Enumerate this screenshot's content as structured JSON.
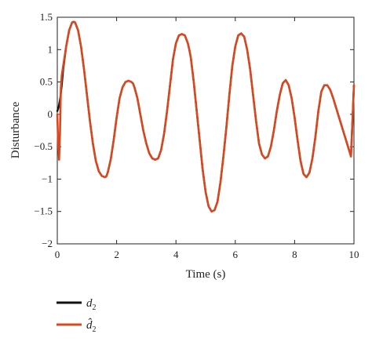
{
  "chart_data": {
    "type": "line",
    "xlabel": "Time (s)",
    "ylabel": "Disturbance",
    "xlim": [
      0,
      10
    ],
    "ylim": [
      -2,
      1.5
    ],
    "xticks": [
      0,
      2,
      4,
      6,
      8,
      10
    ],
    "yticks": [
      -2,
      -1.5,
      -1,
      -0.5,
      0,
      0.5,
      1,
      1.5
    ],
    "xtick_labels": [
      "0",
      "2",
      "4",
      "6",
      "8",
      "10"
    ],
    "ytick_labels": [
      "−2",
      "−1.5",
      "−1",
      "−0.5",
      "0",
      "0.5",
      "1",
      "1.5"
    ],
    "grid": false,
    "legend_position": "bottom-left, below plot",
    "series": [
      {
        "name": "d2",
        "legend_main": "d",
        "legend_sub": "2",
        "color": "#111111",
        "x": [
          0,
          0.05,
          0.1,
          0.15,
          0.2,
          0.3,
          0.4,
          0.5,
          0.55,
          0.6,
          0.7,
          0.8,
          0.9,
          1.0,
          1.1,
          1.2,
          1.3,
          1.4,
          1.5,
          1.6,
          1.65,
          1.7,
          1.8,
          1.9,
          2.0,
          2.1,
          2.2,
          2.3,
          2.4,
          2.5,
          2.55,
          2.6,
          2.7,
          2.8,
          2.9,
          3.0,
          3.1,
          3.2,
          3.3,
          3.4,
          3.5,
          3.6,
          3.7,
          3.8,
          3.9,
          4.0,
          4.1,
          4.2,
          4.3,
          4.4,
          4.45,
          4.5,
          4.6,
          4.7,
          4.8,
          4.9,
          5.0,
          5.1,
          5.2,
          5.3,
          5.4,
          5.5,
          5.6,
          5.7,
          5.8,
          5.9,
          6.0,
          6.1,
          6.2,
          6.3,
          6.4,
          6.5,
          6.6,
          6.7,
          6.8,
          6.9,
          7.0,
          7.1,
          7.2,
          7.3,
          7.4,
          7.5,
          7.6,
          7.7,
          7.8,
          7.9,
          8.0,
          8.1,
          8.2,
          8.3,
          8.4,
          8.5,
          8.6,
          8.7,
          8.8,
          8.9,
          9.0,
          9.1,
          9.2,
          9.3,
          9.4,
          9.5,
          9.6,
          9.7,
          9.8,
          9.9,
          10.0
        ],
        "y": [
          0.05,
          0.12,
          0.25,
          0.45,
          0.7,
          1.05,
          1.3,
          1.42,
          1.43,
          1.42,
          1.3,
          1.05,
          0.7,
          0.3,
          -0.1,
          -0.45,
          -0.72,
          -0.88,
          -0.95,
          -0.97,
          -0.96,
          -0.9,
          -0.7,
          -0.4,
          -0.05,
          0.25,
          0.42,
          0.5,
          0.52,
          0.5,
          0.48,
          0.42,
          0.25,
          0.0,
          -0.25,
          -0.45,
          -0.6,
          -0.68,
          -0.7,
          -0.68,
          -0.55,
          -0.3,
          0.05,
          0.45,
          0.85,
          1.1,
          1.22,
          1.24,
          1.22,
          1.1,
          1.0,
          0.88,
          0.5,
          0.05,
          -0.4,
          -0.85,
          -1.2,
          -1.42,
          -1.5,
          -1.48,
          -1.35,
          -1.05,
          -0.65,
          -0.2,
          0.3,
          0.75,
          1.05,
          1.22,
          1.25,
          1.2,
          1.0,
          0.7,
          0.3,
          -0.1,
          -0.45,
          -0.62,
          -0.68,
          -0.65,
          -0.5,
          -0.25,
          0.05,
          0.3,
          0.48,
          0.53,
          0.45,
          0.25,
          -0.05,
          -0.4,
          -0.72,
          -0.92,
          -0.97,
          -0.9,
          -0.68,
          -0.35,
          0.05,
          0.35,
          0.45,
          0.45,
          0.38,
          0.25,
          0.1,
          -0.05,
          -0.2,
          -0.35,
          -0.5,
          -0.65,
          0.45
        ]
      },
      {
        "name": "d̂ 2",
        "legend_main": "d̂",
        "legend_sub": "2",
        "color": "#d9471e",
        "x": [
          0,
          0.03,
          0.06,
          0.09,
          0.12,
          0.15,
          0.2,
          0.3,
          0.4,
          0.5,
          0.55,
          0.6,
          0.7,
          0.8,
          0.9,
          1.0,
          1.1,
          1.2,
          1.3,
          1.4,
          1.5,
          1.6,
          1.65,
          1.7,
          1.8,
          1.9,
          2.0,
          2.1,
          2.2,
          2.3,
          2.4,
          2.5,
          2.55,
          2.6,
          2.7,
          2.8,
          2.9,
          3.0,
          3.1,
          3.2,
          3.3,
          3.4,
          3.5,
          3.6,
          3.7,
          3.8,
          3.9,
          4.0,
          4.1,
          4.2,
          4.3,
          4.4,
          4.45,
          4.5,
          4.6,
          4.7,
          4.8,
          4.9,
          5.0,
          5.1,
          5.2,
          5.3,
          5.4,
          5.5,
          5.6,
          5.7,
          5.8,
          5.9,
          6.0,
          6.1,
          6.2,
          6.3,
          6.4,
          6.5,
          6.6,
          6.7,
          6.8,
          6.9,
          7.0,
          7.1,
          7.2,
          7.3,
          7.4,
          7.5,
          7.6,
          7.7,
          7.8,
          7.9,
          8.0,
          8.1,
          8.2,
          8.3,
          8.4,
          8.5,
          8.6,
          8.7,
          8.8,
          8.9,
          9.0,
          9.1,
          9.2,
          9.3,
          9.4,
          9.5,
          9.6,
          9.7,
          9.8,
          9.9,
          10.0
        ],
        "y": [
          0.0,
          -0.45,
          -0.7,
          -0.3,
          0.4,
          0.6,
          0.75,
          1.05,
          1.3,
          1.42,
          1.43,
          1.42,
          1.3,
          1.05,
          0.7,
          0.3,
          -0.1,
          -0.45,
          -0.72,
          -0.88,
          -0.95,
          -0.97,
          -0.96,
          -0.9,
          -0.7,
          -0.4,
          -0.05,
          0.25,
          0.42,
          0.5,
          0.52,
          0.5,
          0.48,
          0.42,
          0.25,
          0.0,
          -0.25,
          -0.45,
          -0.6,
          -0.68,
          -0.7,
          -0.68,
          -0.55,
          -0.3,
          0.05,
          0.45,
          0.85,
          1.1,
          1.22,
          1.24,
          1.22,
          1.1,
          1.0,
          0.88,
          0.5,
          0.05,
          -0.4,
          -0.85,
          -1.2,
          -1.42,
          -1.5,
          -1.48,
          -1.35,
          -1.05,
          -0.65,
          -0.2,
          0.3,
          0.75,
          1.05,
          1.22,
          1.25,
          1.2,
          1.0,
          0.7,
          0.3,
          -0.1,
          -0.45,
          -0.62,
          -0.68,
          -0.65,
          -0.5,
          -0.25,
          0.05,
          0.3,
          0.48,
          0.53,
          0.45,
          0.25,
          -0.05,
          -0.4,
          -0.72,
          -0.92,
          -0.97,
          -0.9,
          -0.68,
          -0.35,
          0.05,
          0.35,
          0.45,
          0.45,
          0.38,
          0.25,
          0.1,
          -0.05,
          -0.2,
          -0.35,
          -0.5,
          -0.65,
          0.45
        ]
      }
    ]
  }
}
